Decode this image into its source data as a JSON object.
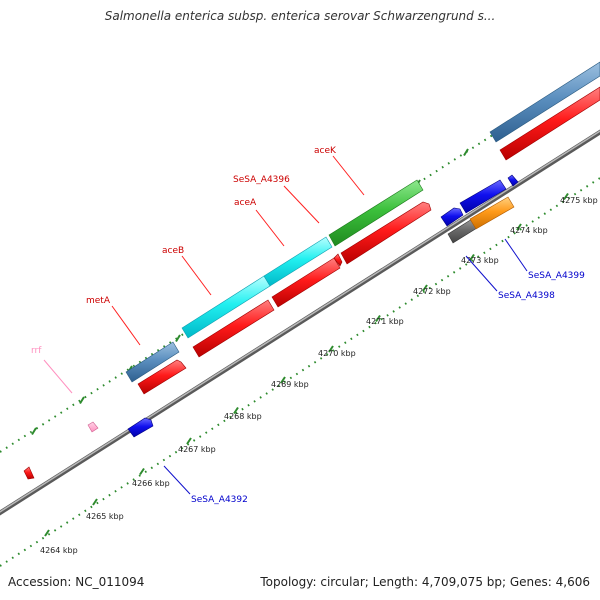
{
  "title": "Salmonella enterica subsp. enterica serovar Schwarzengrund s...",
  "footer": {
    "accession": "Accession: NC_011094",
    "summary": "Topology: circular; Length: 4,709,075 bp; Genes: 4,606"
  },
  "colors": {
    "backbone": "#8c8c8c",
    "ticks": "#2e8b2e",
    "cds": "#ff1a1a",
    "label_red": "#cc0000",
    "label_blue": "#0000cc",
    "label_pink": "#ff8fbf"
  },
  "kbp_labels": [
    "4264 kbp",
    "4265 kbp",
    "4266 kbp",
    "4267 kbp",
    "4268 kbp",
    "4269 kbp",
    "4270 kbp",
    "4271 kbp",
    "4272 kbp",
    "4273 kbp",
    "4274 kbp",
    "4275 kbp"
  ],
  "gene_labels": {
    "rrf": "rrf",
    "metA": "metA",
    "aceB": "aceB",
    "aceA": "aceA",
    "SeSA_A4396": "SeSA_A4396",
    "aceK": "aceK",
    "SeSA_A4392": "SeSA_A4392",
    "SeSA_A4398": "SeSA_A4398",
    "SeSA_A4399": "SeSA_A4399"
  }
}
